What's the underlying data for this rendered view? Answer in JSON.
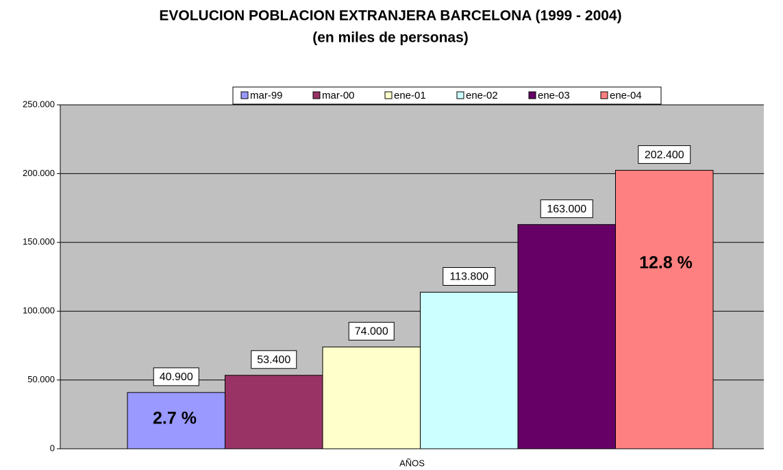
{
  "chart_data": {
    "type": "bar",
    "title": "EVOLUCION POBLACION EXTRANJERA BARCELONA (1999 - 2004)",
    "subtitle": "(en miles de personas)",
    "x_label": "AÑOS",
    "categories": [
      "AÑOS"
    ],
    "series": [
      {
        "name": "mar-99",
        "color": "#9999ff",
        "values": [
          40900
        ],
        "value_labels": [
          "40.900"
        ]
      },
      {
        "name": "mar-00",
        "color": "#993366",
        "values": [
          53400
        ],
        "value_labels": [
          "53.400"
        ]
      },
      {
        "name": "ene-01",
        "color": "#ffffcc",
        "values": [
          74000
        ],
        "value_labels": [
          "74.000"
        ]
      },
      {
        "name": "ene-02",
        "color": "#ccffff",
        "values": [
          113800
        ],
        "value_labels": [
          "113.800"
        ]
      },
      {
        "name": "ene-03",
        "color": "#660066",
        "values": [
          163000
        ],
        "value_labels": [
          "163.000"
        ]
      },
      {
        "name": "ene-04",
        "color": "#ff8080",
        "values": [
          202400
        ],
        "value_labels": [
          "202.400"
        ]
      }
    ],
    "annotations": [
      "2.7 %",
      "12.8 %"
    ],
    "ylim": [
      0,
      250000
    ],
    "yticks": [
      0,
      {
        "value": 50000,
        "label": "50.000"
      },
      {
        "value": 100000,
        "label": "100.000"
      },
      {
        "value": 150000,
        "label": "150.000"
      },
      {
        "value": 200000,
        "label": "200.000"
      },
      {
        "value": 250000,
        "label": "250.000"
      }
    ],
    "grid": true,
    "legend": "top",
    "plot_background": "#c0c0c0"
  }
}
